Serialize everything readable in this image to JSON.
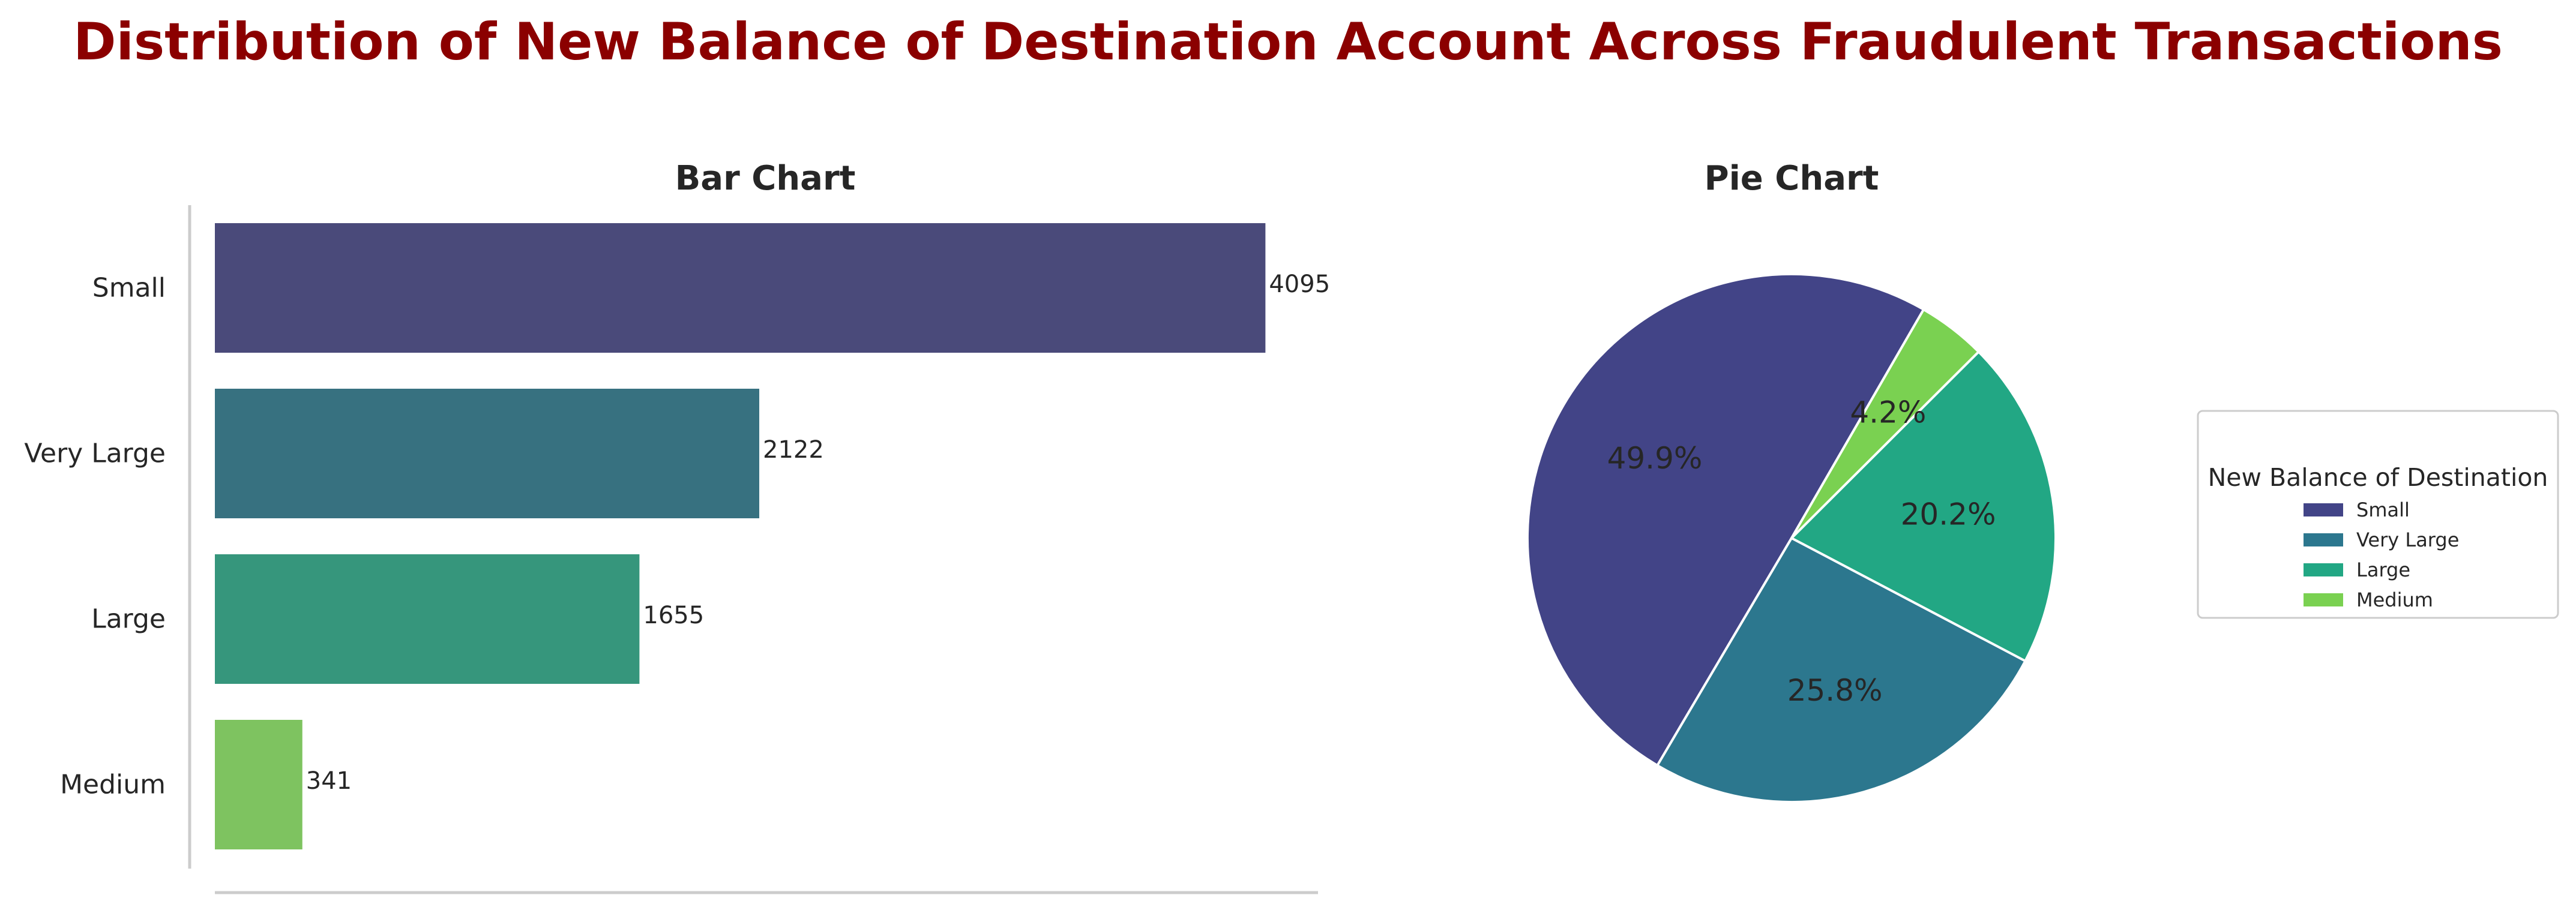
{
  "title": "Distribution of New Balance of Destination Account Across Fraudulent Transactions",
  "chart_data": [
    {
      "type": "bar",
      "orientation": "horizontal",
      "title": "Bar Chart",
      "categories": [
        "Small",
        "Very Large",
        "Large",
        "Medium"
      ],
      "values": [
        4095,
        2122,
        1655,
        341
      ],
      "data_labels": [
        "4095",
        "2122",
        "1655",
        "341"
      ],
      "colors": [
        "#4a4a7a",
        "#377180",
        "#36967c",
        "#7ec360"
      ],
      "xlim": [
        0,
        4300
      ],
      "grid": false,
      "xlabel": "",
      "ylabel": ""
    },
    {
      "type": "pie",
      "title": "Pie Chart",
      "categories": [
        "Small",
        "Very Large",
        "Large",
        "Medium"
      ],
      "values": [
        49.9,
        25.8,
        20.2,
        4.2
      ],
      "data_labels": [
        "49.9%",
        "25.8%",
        "20.2%",
        "4.2%"
      ],
      "colors": [
        "#424487",
        "#2c778e",
        "#22a784",
        "#7ad151"
      ],
      "start_angle": 60,
      "counterclockwise": true,
      "legend": {
        "title": "New Balance of Destination",
        "placement": "right",
        "entries": [
          "Small",
          "Very Large",
          "Large",
          "Medium"
        ]
      }
    }
  ]
}
